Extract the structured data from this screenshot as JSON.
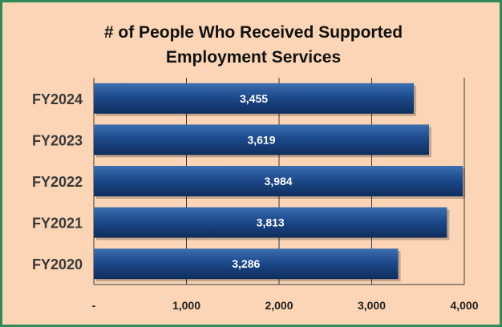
{
  "chart_data": {
    "type": "bar",
    "orientation": "horizontal",
    "title_lines": [
      "# of People Who Received Supported",
      "Employment Services"
    ],
    "categories": [
      "FY2024",
      "FY2023",
      "FY2022",
      "FY2021",
      "FY2020"
    ],
    "values": [
      3455,
      3619,
      3984,
      3813,
      3286
    ],
    "value_labels": [
      "3,455",
      "3,619",
      "3,984",
      "3,813",
      "3,286"
    ],
    "xlim": [
      0,
      4000
    ],
    "x_ticks": [
      0,
      1000,
      2000,
      3000,
      4000
    ],
    "x_tick_labels": [
      "-",
      "1,000",
      "2,000",
      "3,000",
      "4,000"
    ],
    "xlabel": "",
    "ylabel": "",
    "grid": "vertical",
    "legend": "none"
  },
  "colors": {
    "background": "#fbd5b5",
    "border": "#2e8b57",
    "bar_top": "#3c6fb0",
    "bar_mid": "#1d4a8c",
    "bar_bottom": "#0f2d5c",
    "category_text": "#3a3a3a",
    "value_text": "#ffffff"
  }
}
